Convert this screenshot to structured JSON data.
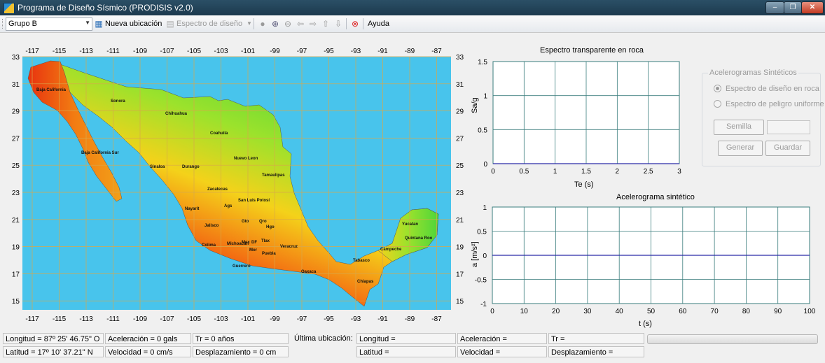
{
  "window": {
    "title": "Programa de Diseño Sísmico (PRODISIS v2.0)",
    "controls": [
      "–",
      "❐",
      "✕"
    ]
  },
  "toolbar": {
    "group_select": "Grupo B",
    "nueva_ubicacion": "Nueva ubicación",
    "espectro_diseno": "Espectro de diseño",
    "ayuda": "Ayuda"
  },
  "map": {
    "x_ticks": [
      "-117",
      "-115",
      "-113",
      "-111",
      "-109",
      "-107",
      "-105",
      "-103",
      "-101",
      "-99",
      "-97",
      "-95",
      "-93",
      "-91",
      "-89",
      "-87"
    ],
    "y_ticks": [
      "33",
      "31",
      "29",
      "27",
      "25",
      "23",
      "21",
      "19",
      "17",
      "15"
    ],
    "states": [
      {
        "name": "Baja California"
      },
      {
        "name": "Sonora"
      },
      {
        "name": "Chihuahua"
      },
      {
        "name": "Coahuila"
      },
      {
        "name": "Baja California Sur"
      },
      {
        "name": "Nuevo Leon"
      },
      {
        "name": "Sinaloa"
      },
      {
        "name": "Durango"
      },
      {
        "name": "Tamaulipas"
      },
      {
        "name": "Zacatecas"
      },
      {
        "name": "San Luis Potosí"
      },
      {
        "name": "Nayarit"
      },
      {
        "name": "Ags"
      },
      {
        "name": "Gto"
      },
      {
        "name": "Qro"
      },
      {
        "name": "Hgo"
      },
      {
        "name": "Jalisco"
      },
      {
        "name": "Yucatan"
      },
      {
        "name": "Quintana Roo"
      },
      {
        "name": "Mex"
      },
      {
        "name": "DF"
      },
      {
        "name": "Tlax"
      },
      {
        "name": "Michoacan"
      },
      {
        "name": "Colima"
      },
      {
        "name": "Veracruz"
      },
      {
        "name": "Campeche"
      },
      {
        "name": "Mor"
      },
      {
        "name": "Puebla"
      },
      {
        "name": "Tabasco"
      },
      {
        "name": "Guerrero"
      },
      {
        "name": "Oaxaca"
      },
      {
        "name": "Chiapas"
      }
    ],
    "colors": {
      "ocean": "#48c4ec",
      "grid": "#d8a84a",
      "high_hazard": "#e01a0f",
      "mid_hazard": "#f4d21a",
      "low_hazard": "#4fd53a"
    }
  },
  "spectrum_chart": {
    "title": "Espectro transparente en roca",
    "xlabel": "Te (s)",
    "ylabel": "Sa/g",
    "x_ticks": [
      "0",
      "0.5",
      "1",
      "1.5",
      "2",
      "2.5",
      "3"
    ],
    "y_ticks": [
      "1.5",
      "1",
      "0.5",
      "0"
    ]
  },
  "accel_chart": {
    "title": "Acelerograma sintético",
    "xlabel": "t (s)",
    "ylabel": "a [m/s²]",
    "x_ticks": [
      "0",
      "10",
      "20",
      "30",
      "40",
      "50",
      "60",
      "70",
      "80",
      "90",
      "100"
    ],
    "y_ticks": [
      "1",
      "0.5",
      "0",
      "-0.5",
      "-1"
    ]
  },
  "chart_data": [
    {
      "type": "line",
      "title": "Espectro transparente en roca",
      "xlabel": "Te (s)",
      "ylabel": "Sa/g",
      "xlim": [
        0,
        3
      ],
      "ylim": [
        0,
        1.5
      ],
      "grid": true,
      "series": [
        {
          "x": [
            0,
            3
          ],
          "y": [
            0,
            0
          ]
        }
      ]
    },
    {
      "type": "line",
      "title": "Acelerograma sintético",
      "xlabel": "t (s)",
      "ylabel": "a [m/s²]",
      "xlim": [
        0,
        100
      ],
      "ylim": [
        -1,
        1
      ],
      "grid": true,
      "series": [
        {
          "x": [
            0,
            100
          ],
          "y": [
            0,
            0
          ]
        }
      ]
    }
  ],
  "sintetic_group": {
    "legend": "Acelerogramas Sintéticos",
    "radio_roca": "Espectro de diseño en roca",
    "radio_uniforme": "Espectro de peligro uniforme",
    "semilla": "Semilla",
    "generar": "Generar",
    "guardar": "Guardar"
  },
  "status": {
    "longitud": "Longitud = 87º 25' 46.75\" O",
    "latitud": "Latitud = 17º 10' 37.21\" N",
    "aceleracion": "Aceleración = 0 gals",
    "velocidad": "Velocidad = 0 cm/s",
    "tr": "Tr = 0 años",
    "desplazamiento": "Desplazamiento = 0 cm",
    "ultima": "Última ubicación:",
    "u_longitud": "Longitud =",
    "u_latitud": "Latitud =",
    "u_aceleracion": "Aceleración =",
    "u_velocidad": "Velocidad =",
    "u_tr": "Tr =",
    "u_desplazamiento": "Desplazamiento ="
  }
}
